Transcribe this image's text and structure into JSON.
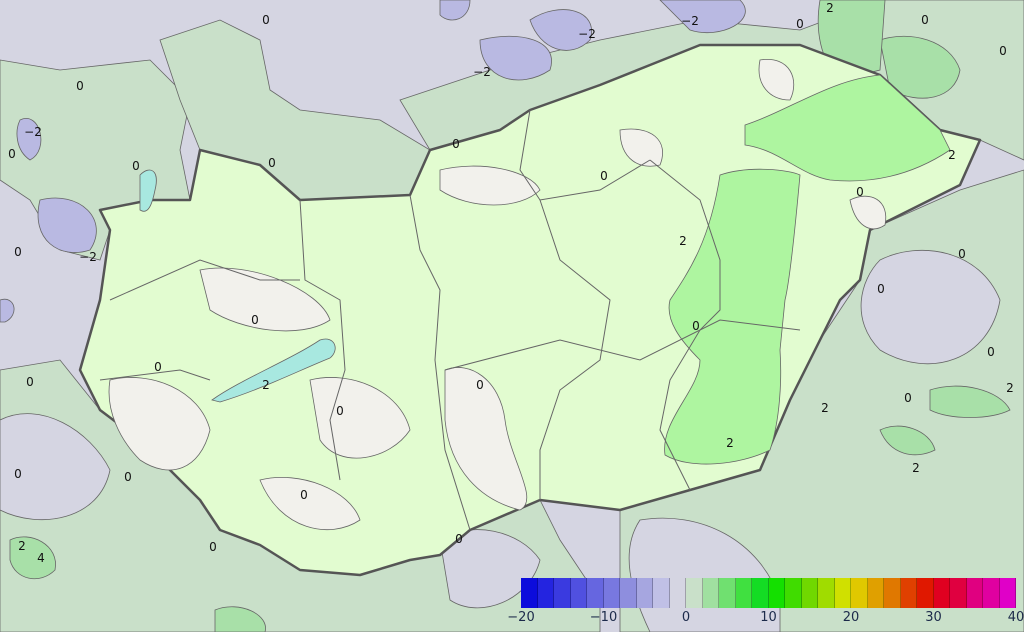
{
  "map": {
    "type": "contour-field",
    "colors": {
      "region_below_0": "#d5d5e2",
      "region_below_minus2": "#b9b9e2",
      "region_0_2_outside": "#c9e0c9",
      "region_0_2_inside": "#e2fcd0",
      "region_near_0_inside": "#f2f1ec",
      "region_2_4_inside": "#aef5a0",
      "region_2_4_outside": "#a8e0a8",
      "lake": "#a8e8e0",
      "border": "#555555"
    },
    "contour_labels": [
      "0",
      "-2",
      "-2",
      "0",
      "-2",
      "0",
      "0",
      "-2",
      "0",
      "0",
      "-2",
      "0",
      "0",
      "0",
      "2",
      "0",
      "0",
      "2",
      "0",
      "2",
      "0",
      "0",
      "0",
      "0",
      "0",
      "2",
      "0",
      "0",
      "0",
      "0",
      "2",
      "2",
      "0",
      "2",
      "4",
      "0",
      "0",
      "0",
      "2",
      "0",
      "0",
      "2"
    ]
  },
  "colorbar": {
    "bins_lower_bound": [
      -20,
      -18,
      -16,
      -14,
      -12,
      -10,
      -8,
      -6,
      -4,
      -2,
      0,
      2,
      4,
      6,
      8,
      10,
      12,
      14,
      16,
      18,
      20,
      22,
      24,
      26,
      28,
      30,
      32,
      34,
      36,
      38
    ],
    "colors": [
      "#0c0cdc",
      "#2424e0",
      "#3a3ae0",
      "#5050e0",
      "#6666e0",
      "#7878e0",
      "#8e8ede",
      "#a6a6e0",
      "#c0c0e6",
      "#d5d5e2",
      "#c9e0c9",
      "#a0e0a0",
      "#70e070",
      "#40e040",
      "#14dc24",
      "#14e000",
      "#40dc00",
      "#70d800",
      "#a0dc00",
      "#d0e000",
      "#e0c800",
      "#e0a000",
      "#e07800",
      "#e04000",
      "#e01800",
      "#e00020",
      "#e00040",
      "#e00080",
      "#e000a0",
      "#e000c8"
    ],
    "tick_labels": [
      "−20",
      "−10",
      "0",
      "10",
      "20",
      "30",
      "40"
    ],
    "tick_values": [
      -20,
      -10,
      0,
      10,
      20,
      30,
      40
    ]
  }
}
